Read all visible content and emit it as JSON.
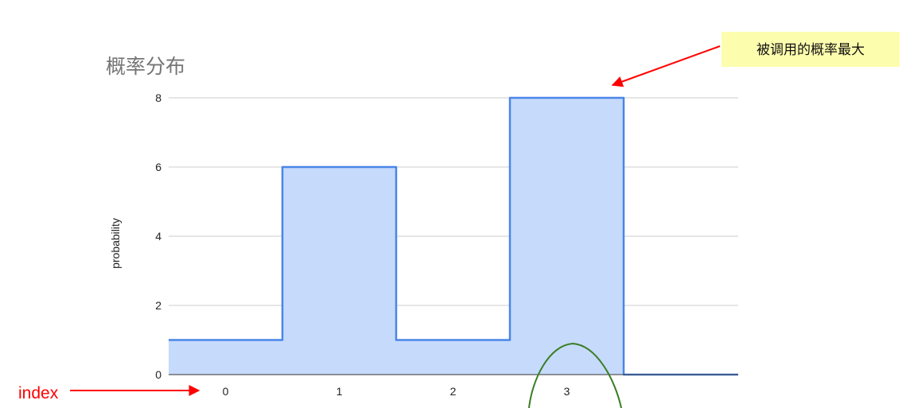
{
  "chart_data": {
    "type": "area",
    "step": true,
    "title": "概率分布",
    "ylabel": "probability",
    "x": [
      "0",
      "1",
      "2",
      "3"
    ],
    "series": [
      {
        "values": [
          1,
          6,
          1,
          8
        ]
      }
    ],
    "ylim": [
      0,
      8
    ],
    "yticks": [
      0,
      2,
      4,
      6,
      8
    ],
    "grid": true,
    "colors": {
      "fill": "#c6dafc",
      "line": "#4a86e8",
      "grid": "#cccccc",
      "axis": "#333333"
    }
  },
  "annotations": {
    "callout": {
      "text": "被调用的概率最大",
      "background": "#fdfdae",
      "arrow_color": "#ff0000"
    },
    "index_label": {
      "text": "index",
      "color": "#ff0000"
    },
    "highlight_ellipse": {
      "target_x": "3",
      "color": "#3a7d23"
    }
  }
}
